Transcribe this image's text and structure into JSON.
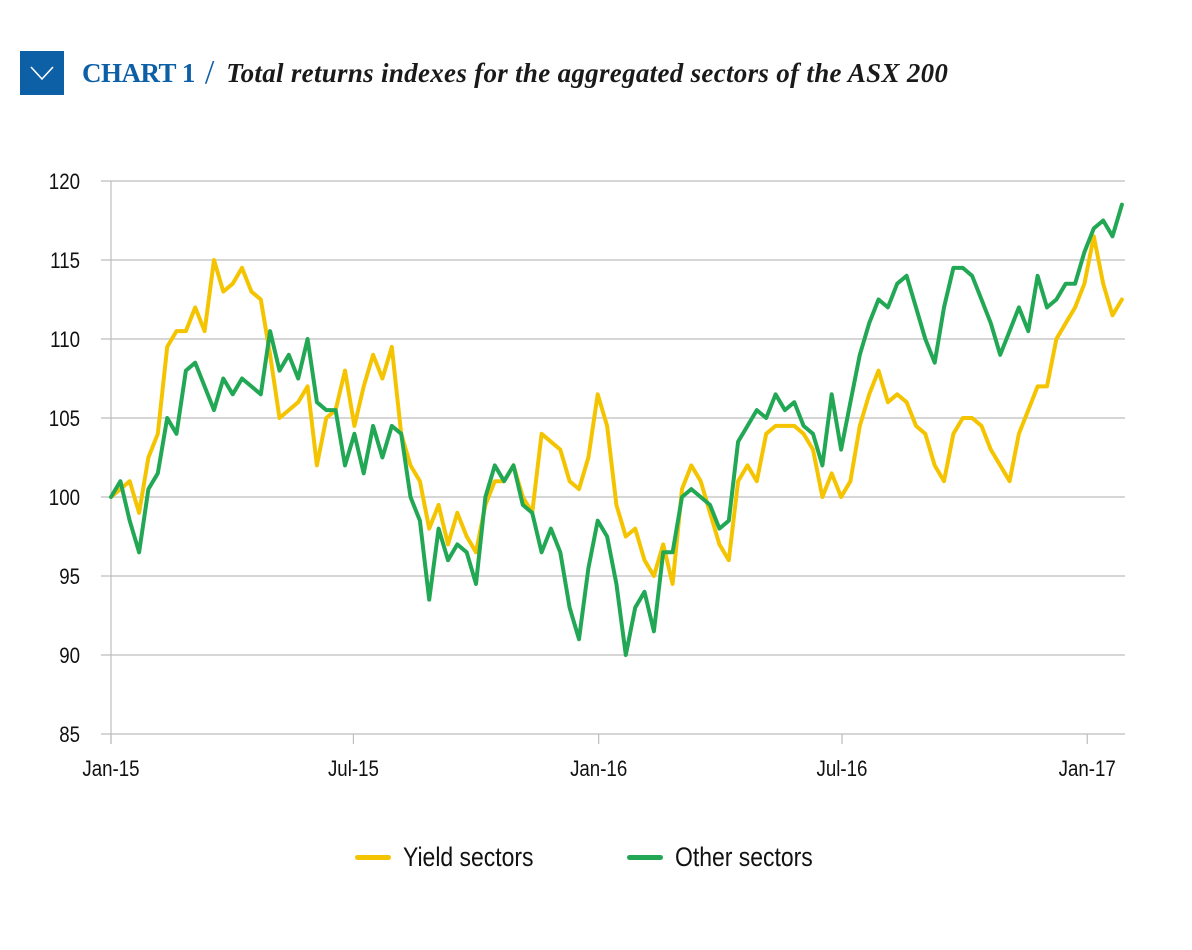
{
  "header": {
    "icon": "chevron-down-icon",
    "chart_label": "CHART 1",
    "separator": "/",
    "title": "Total returns indexes for the aggregated sectors of the ASX 200"
  },
  "colors": {
    "brand_blue": "#0d5fa6",
    "yield": "#f5c400",
    "other": "#22a855",
    "grid": "#bdbdbd"
  },
  "chart_data": {
    "type": "line",
    "title": "Total returns indexes for the aggregated sectors of the ASX 200",
    "xlabel": "",
    "ylabel": "",
    "ylim": [
      85,
      120
    ],
    "yticks": [
      85,
      90,
      95,
      100,
      105,
      110,
      115,
      120
    ],
    "xticks": [
      {
        "label": "Jan-15",
        "week": 0
      },
      {
        "label": "Jul-15",
        "week": 25.9
      },
      {
        "label": "Jan-16",
        "week": 52.1
      },
      {
        "label": "Jul-16",
        "week": 78.1
      },
      {
        "label": "Jan-17",
        "week": 104.3
      }
    ],
    "x_unit": "weeks since Jan-15",
    "xlim": [
      0,
      108.4
    ],
    "grid": true,
    "legend_position": "bottom-center",
    "series": [
      {
        "name": "Yield sectors",
        "color": "#f5c400",
        "values": [
          100,
          100.5,
          101,
          99,
          102.5,
          104,
          109.5,
          110.5,
          110.5,
          112,
          110.5,
          115,
          113,
          113.5,
          114.5,
          113,
          112.5,
          109,
          105,
          105.5,
          106,
          107,
          102,
          105,
          105.5,
          108,
          104.5,
          107,
          109,
          107.5,
          109.5,
          104,
          102,
          101,
          98,
          99.5,
          97,
          99,
          97.5,
          96.5,
          99.5,
          101,
          101,
          102,
          100,
          99,
          104,
          103.5,
          103,
          101,
          100.5,
          102.5,
          106.5,
          104.5,
          99.5,
          97.5,
          98,
          96,
          95,
          97,
          94.5,
          100.5,
          102,
          101,
          99,
          97,
          96,
          101,
          102,
          101,
          104,
          104.5,
          104.5,
          104.5,
          104,
          103,
          100,
          101.5,
          100,
          101,
          104.5,
          106.5,
          108,
          106,
          106.5,
          106,
          104.5,
          104,
          102,
          101,
          104,
          105,
          105,
          104.5,
          103,
          102,
          101,
          104,
          105.5,
          107,
          107,
          110,
          111,
          112,
          113.5,
          116.5,
          113.5,
          111.5,
          112.5
        ]
      },
      {
        "name": "Other sectors",
        "color": "#22a855",
        "values": [
          100,
          101,
          98.5,
          96.5,
          100.5,
          101.5,
          105,
          104,
          108,
          108.5,
          107,
          105.5,
          107.5,
          106.5,
          107.5,
          107,
          106.5,
          110.5,
          108,
          109,
          107.5,
          110,
          106,
          105.5,
          105.5,
          102,
          104,
          101.5,
          104.5,
          102.5,
          104.5,
          104,
          100,
          98.5,
          93.5,
          98,
          96,
          97,
          96.5,
          94.5,
          100,
          102,
          101,
          102,
          99.5,
          99,
          96.5,
          98,
          96.5,
          93,
          91,
          95.5,
          98.5,
          97.5,
          94.5,
          90,
          93,
          94,
          91.5,
          96.5,
          96.5,
          100,
          100.5,
          100,
          99.5,
          98,
          98.5,
          103.5,
          104.5,
          105.5,
          105,
          106.5,
          105.5,
          106,
          104.5,
          104,
          102,
          106.5,
          103,
          106,
          109,
          111,
          112.5,
          112,
          113.5,
          114,
          112,
          110,
          108.5,
          112,
          114.5,
          114.5,
          114,
          112.5,
          111,
          109,
          110.5,
          112,
          110.5,
          114,
          112,
          112.5,
          113.5,
          113.5,
          115.5,
          117,
          117.5,
          116.5,
          118.5
        ]
      }
    ]
  },
  "legend": [
    {
      "label": "Yield sectors",
      "color": "#f5c400"
    },
    {
      "label": "Other sectors",
      "color": "#22a855"
    }
  ]
}
